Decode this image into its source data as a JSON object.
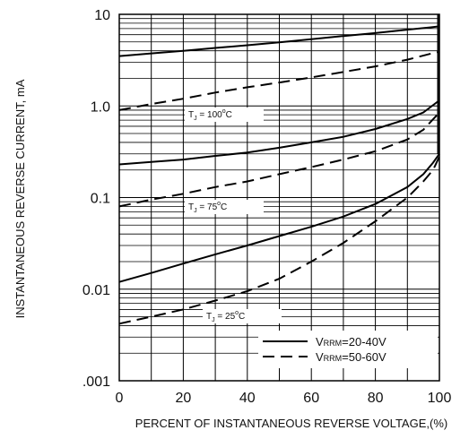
{
  "chart_data": {
    "type": "line",
    "xlabel": "PERCENT OF INSTANTANEOUS REVERSE VOLTAGE,(%)",
    "ylabel": "INSTANTANEOUS REVERSE CURRENT, mA",
    "xlim": [
      0,
      100
    ],
    "ylim": [
      0.001,
      10
    ],
    "yscale": "log",
    "grid": true,
    "x_ticks": [
      "0",
      "20",
      "40",
      "60",
      "80",
      "100"
    ],
    "y_ticks": [
      ".001",
      "0.01",
      "0.1",
      "1.0",
      "10"
    ],
    "legend": {
      "position": "bottom-right",
      "entries": [
        {
          "style": "solid",
          "prefix": "V",
          "subscript": "RRM",
          "suffix": "=20-40V"
        },
        {
          "style": "dashed",
          "prefix": "V",
          "subscript": "RRM",
          "suffix": "=50-60V"
        }
      ]
    },
    "annotations": [
      {
        "prefix": "T",
        "subscript": "J",
        "text": " = 100",
        "sup": "o",
        "unit": "C"
      },
      {
        "prefix": "T",
        "subscript": "J",
        "text": " = 75",
        "sup": "o",
        "unit": "C"
      },
      {
        "prefix": "T",
        "subscript": "J",
        "text": " = 25",
        "sup": "o",
        "unit": "C"
      }
    ],
    "series": [
      {
        "style": "solid",
        "x": [
          0,
          10,
          20,
          30,
          40,
          50,
          60,
          70,
          80,
          90,
          97,
          100
        ],
        "y": [
          3.5,
          3.75,
          4.0,
          4.3,
          4.6,
          4.95,
          5.35,
          5.8,
          6.25,
          6.8,
          7.2,
          7.4
        ]
      },
      {
        "style": "dashed",
        "x": [
          0,
          10,
          20,
          30,
          40,
          50,
          60,
          70,
          80,
          90,
          97,
          100
        ],
        "y": [
          0.9,
          1.05,
          1.2,
          1.4,
          1.6,
          1.8,
          2.05,
          2.35,
          2.7,
          3.2,
          3.7,
          3.9
        ]
      },
      {
        "style": "solid",
        "x": [
          0,
          10,
          20,
          30,
          40,
          50,
          60,
          70,
          80,
          90,
          95,
          100
        ],
        "y": [
          0.23,
          0.245,
          0.26,
          0.285,
          0.31,
          0.35,
          0.4,
          0.46,
          0.56,
          0.72,
          0.85,
          1.15
        ]
      },
      {
        "style": "dashed",
        "x": [
          0,
          10,
          20,
          30,
          40,
          50,
          60,
          70,
          80,
          90,
          95,
          100
        ],
        "y": [
          0.08,
          0.095,
          0.11,
          0.13,
          0.15,
          0.18,
          0.215,
          0.26,
          0.32,
          0.43,
          0.55,
          0.85
        ]
      },
      {
        "style": "solid",
        "x": [
          0,
          10,
          20,
          30,
          40,
          50,
          60,
          70,
          80,
          90,
          95,
          98,
          100
        ],
        "y": [
          0.012,
          0.015,
          0.019,
          0.024,
          0.03,
          0.038,
          0.048,
          0.062,
          0.085,
          0.13,
          0.18,
          0.24,
          0.3
        ]
      },
      {
        "style": "dashed",
        "x": [
          0,
          10,
          20,
          30,
          40,
          50,
          60,
          70,
          80,
          90,
          95,
          98,
          100
        ],
        "y": [
          0.0042,
          0.005,
          0.006,
          0.0075,
          0.0095,
          0.013,
          0.02,
          0.032,
          0.055,
          0.1,
          0.15,
          0.2,
          0.28
        ]
      }
    ]
  }
}
